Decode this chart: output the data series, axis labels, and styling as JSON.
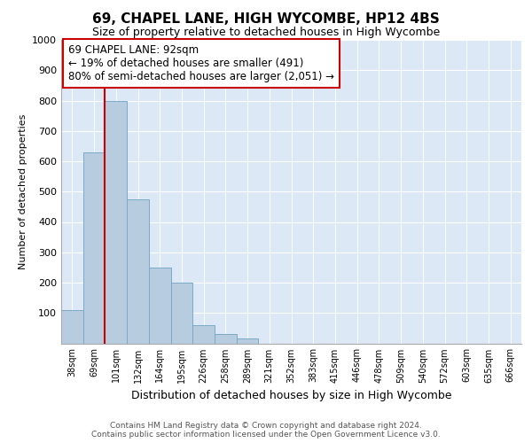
{
  "title1": "69, CHAPEL LANE, HIGH WYCOMBE, HP12 4BS",
  "title2": "Size of property relative to detached houses in High Wycombe",
  "xlabel": "Distribution of detached houses by size in High Wycombe",
  "ylabel": "Number of detached properties",
  "categories": [
    "38sqm",
    "69sqm",
    "101sqm",
    "132sqm",
    "164sqm",
    "195sqm",
    "226sqm",
    "258sqm",
    "289sqm",
    "321sqm",
    "352sqm",
    "383sqm",
    "415sqm",
    "446sqm",
    "478sqm",
    "509sqm",
    "540sqm",
    "572sqm",
    "603sqm",
    "635sqm",
    "666sqm"
  ],
  "values": [
    110,
    630,
    800,
    475,
    250,
    200,
    60,
    30,
    15,
    0,
    0,
    0,
    0,
    0,
    0,
    0,
    0,
    0,
    0,
    0,
    0
  ],
  "bar_color": "#b8ccdf",
  "bar_edge_color": "#7aaac8",
  "vline_x": 1.5,
  "vline_color": "#cc0000",
  "annotation_text": "69 CHAPEL LANE: 92sqm\n← 19% of detached houses are smaller (491)\n80% of semi-detached houses are larger (2,051) →",
  "annotation_box_facecolor": "#ffffff",
  "annotation_box_edgecolor": "#cc0000",
  "ylim": [
    0,
    1000
  ],
  "yticks": [
    0,
    100,
    200,
    300,
    400,
    500,
    600,
    700,
    800,
    900,
    1000
  ],
  "plot_background": "#dce8f5",
  "footer1": "Contains HM Land Registry data © Crown copyright and database right 2024.",
  "footer2": "Contains public sector information licensed under the Open Government Licence v3.0."
}
